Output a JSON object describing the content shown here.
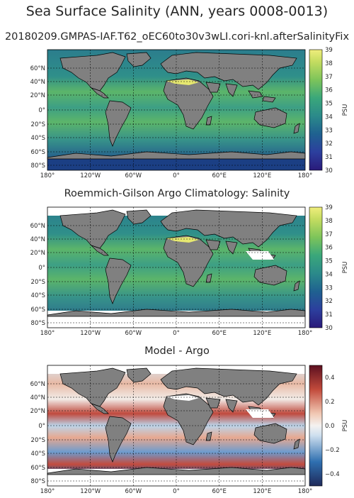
{
  "suptitle": "Sea Surface Salinity (ANN, years 0008-0013)",
  "subtitle": "20180209.GMPAS-IAF.T62_oEC60to30v3wLI.cori-knl.afterSalinityFix",
  "panels": [
    {
      "title": "",
      "colorbar": {
        "label": "PSU",
        "ticks": [
          "39",
          "38",
          "37",
          "36",
          "35",
          "34",
          "33",
          "32",
          "31",
          "30"
        ],
        "cmap": "haline"
      }
    },
    {
      "title": "Roemmich-Gilson Argo Climatology: Salinity",
      "colorbar": {
        "label": "PSU",
        "ticks": [
          "39",
          "38",
          "37",
          "36",
          "35",
          "34",
          "33",
          "32",
          "31",
          "30"
        ],
        "cmap": "haline"
      }
    },
    {
      "title": "Model - Argo",
      "colorbar": {
        "label": "PSU",
        "ticks": [
          "0.4",
          "0.2",
          "0.0",
          "−0.2",
          "−0.4"
        ],
        "cmap": "diverging"
      }
    }
  ],
  "lat_ticks": [
    "60°N",
    "40°N",
    "20°N",
    "0°",
    "20°S",
    "40°S",
    "60°S",
    "80°S"
  ],
  "lon_ticks": [
    "180°",
    "120°W",
    "60°W",
    "0°",
    "60°E",
    "120°E",
    "180°"
  ],
  "colors": {
    "land": "#808080",
    "nodata": "#ffffff"
  }
}
